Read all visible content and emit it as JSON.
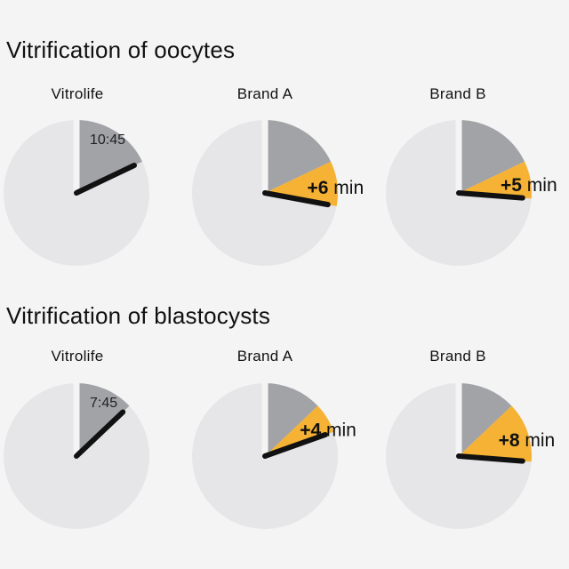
{
  "colors": {
    "face": "#e6e6e8",
    "elapsed": "#a2a3a7",
    "extra": "#f5b234",
    "hand": "#111111",
    "background": "#f4f4f4"
  },
  "chart_data": [
    {
      "type": "pie",
      "title": "Vitrification of oocytes",
      "unit": "min",
      "clocks": [
        {
          "label": "Vitrolife",
          "minutes": 10.75,
          "time_label": "10:45",
          "extra_minutes": 0,
          "extra_label": ""
        },
        {
          "label": "Brand A",
          "minutes": 16.75,
          "time_label": "",
          "extra_minutes": 6,
          "extra_label": "+6 min"
        },
        {
          "label": "Brand B",
          "minutes": 15.75,
          "time_label": "",
          "extra_minutes": 5,
          "extra_label": "+5 min"
        }
      ]
    },
    {
      "type": "pie",
      "title": "Vitrification of blastocysts",
      "unit": "min",
      "clocks": [
        {
          "label": "Vitrolife",
          "minutes": 7.75,
          "time_label": "7:45",
          "extra_minutes": 0,
          "extra_label": ""
        },
        {
          "label": "Brand A",
          "minutes": 11.75,
          "time_label": "",
          "extra_minutes": 4,
          "extra_label": "+4 min"
        },
        {
          "label": "Brand B",
          "minutes": 15.75,
          "time_label": "",
          "extra_minutes": 8,
          "extra_label": "+8 min"
        }
      ]
    }
  ]
}
